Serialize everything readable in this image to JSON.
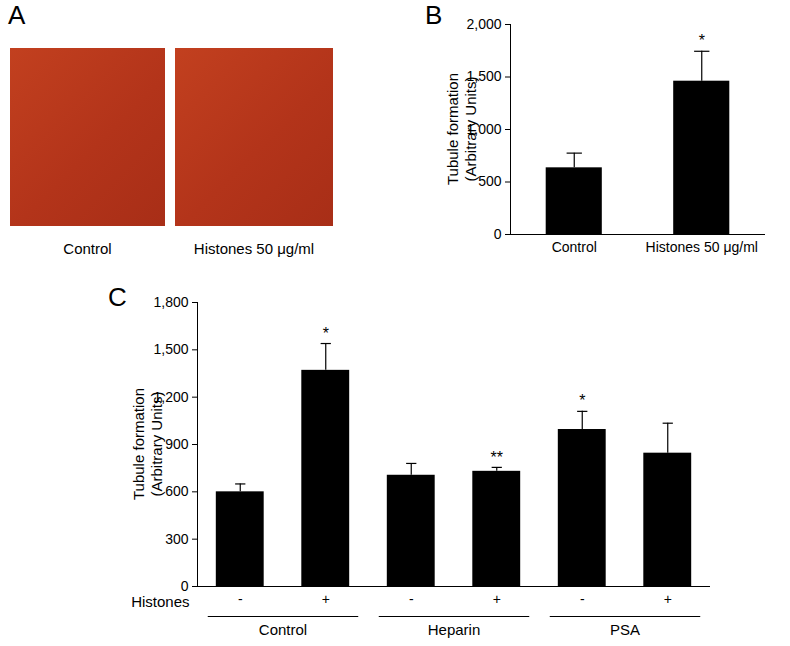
{
  "panel_a": {
    "label": "A",
    "images": [
      {
        "caption": "Control"
      },
      {
        "caption": "Histones 50 μg/ml"
      }
    ]
  },
  "chart_data": [
    {
      "type": "bar",
      "title": "B",
      "categories": [
        "Control",
        "Histones 50 μg/ml"
      ],
      "values": [
        635,
        1460
      ],
      "errors": [
        140,
        285
      ],
      "significance": [
        null,
        "*"
      ],
      "ylabel": [
        "Tubule formation",
        "(Arbitrary Units)"
      ],
      "ylim": [
        0,
        2000
      ],
      "yticks": [
        0,
        500,
        1000,
        1500,
        2000
      ],
      "color": "#000000"
    },
    {
      "type": "bar",
      "title": "C",
      "categories": [
        "-",
        "+",
        "-",
        "+",
        "-",
        "+"
      ],
      "groups": [
        "Control",
        "Control",
        "Heparin",
        "Heparin",
        "PSA",
        "PSA"
      ],
      "xlabel": "Histones",
      "values": [
        600,
        1370,
        705,
        730,
        995,
        845
      ],
      "errors": [
        50,
        170,
        75,
        25,
        115,
        190
      ],
      "significance": [
        null,
        "*",
        null,
        "**",
        "*",
        null
      ],
      "ylabel": [
        "Tubule formation",
        "(Arbitrary Units)"
      ],
      "ylim": [
        0,
        1800
      ],
      "yticks": [
        0,
        300,
        600,
        900,
        1200,
        1500,
        1800
      ],
      "color": "#000000"
    }
  ]
}
